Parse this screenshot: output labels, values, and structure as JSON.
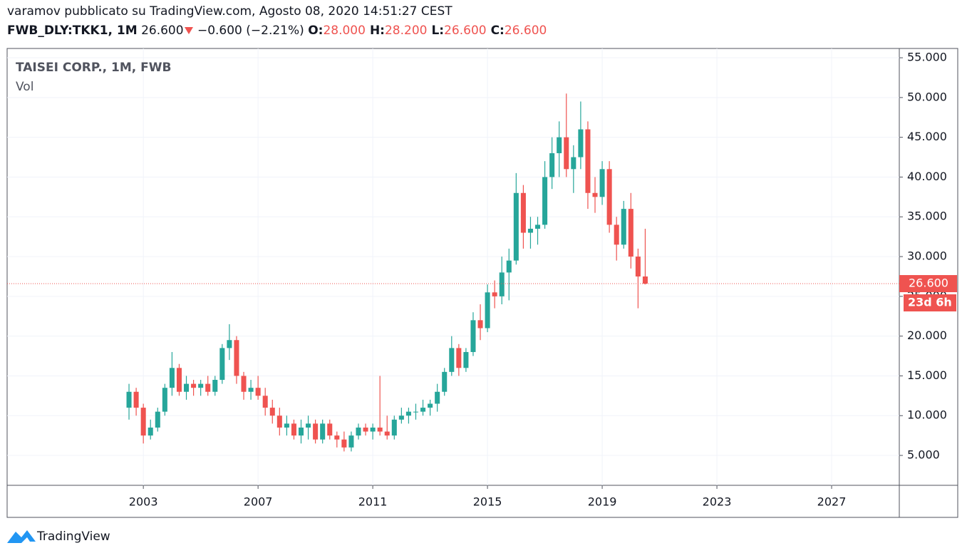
{
  "header": {
    "author_line": "varamov pubblicato su TradingView.com, Agosto 08, 2020 14:51:27 CEST",
    "symbol": "FWB_DLY:TKK1, 1M",
    "last": "26.600",
    "change": "−0.600 (−2.21%)",
    "ohlc": [
      {
        "key": "O:",
        "value": "28.000"
      },
      {
        "key": "H:",
        "value": "28.200"
      },
      {
        "key": "L:",
        "value": "26.600"
      },
      {
        "key": "C:",
        "value": "26.600"
      }
    ]
  },
  "chart_data": {
    "type": "candlestick",
    "title": "TAISEI CORP., 1M, FWB",
    "volume_label": "Vol",
    "up_color": "#26a69a",
    "down_color": "#ef5350",
    "grid": true,
    "price_line": {
      "value": 26.6,
      "label": "26.600"
    },
    "countdown": "23d 6h",
    "xlim": [
      1998.25,
      2029.36
    ],
    "xticks": [
      2003,
      2007,
      2011,
      2015,
      2019,
      2023,
      2027
    ],
    "ylim": [
      1.24,
      56.17
    ],
    "yticks": [
      {
        "value": 5,
        "label": "5.000"
      },
      {
        "value": 10,
        "label": "10.000"
      },
      {
        "value": 15,
        "label": "15.000"
      },
      {
        "value": 20,
        "label": "20.000"
      },
      {
        "value": 25,
        "label": "25.000"
      },
      {
        "value": 30,
        "label": "30.000"
      },
      {
        "value": 35,
        "label": "35.000"
      },
      {
        "value": 40,
        "label": "40.000"
      },
      {
        "value": 45,
        "label": "45.000"
      },
      {
        "value": 50,
        "label": "50.000"
      },
      {
        "value": 55,
        "label": "55.000"
      }
    ],
    "x": [
      2002.5,
      2002.75,
      2003,
      2003.25,
      2003.5,
      2003.75,
      2004,
      2004.25,
      2004.5,
      2004.75,
      2005,
      2005.25,
      2005.5,
      2005.75,
      2006,
      2006.25,
      2006.5,
      2006.75,
      2007,
      2007.25,
      2007.5,
      2007.75,
      2008,
      2008.25,
      2008.5,
      2008.75,
      2009,
      2009.25,
      2009.5,
      2009.75,
      2010,
      2010.25,
      2010.5,
      2010.75,
      2011,
      2011.25,
      2011.5,
      2011.75,
      2012,
      2012.25,
      2012.5,
      2012.75,
      2013,
      2013.25,
      2013.5,
      2013.75,
      2014,
      2014.25,
      2014.5,
      2014.75,
      2015,
      2015.25,
      2015.5,
      2015.75,
      2016,
      2016.25,
      2016.5,
      2016.75,
      2017,
      2017.25,
      2017.5,
      2017.75,
      2018,
      2018.25,
      2018.5,
      2018.75,
      2019,
      2019.25,
      2019.5,
      2019.75,
      2020,
      2020.25,
      2020.5
    ],
    "open": [
      11,
      13,
      11,
      7.5,
      8.5,
      10.5,
      13.5,
      16,
      13,
      14,
      13.5,
      14,
      13,
      14.5,
      18.5,
      19.5,
      15,
      13,
      13.5,
      12.5,
      11,
      10,
      8.5,
      9,
      7.5,
      8.5,
      9,
      7,
      9,
      7.5,
      7,
      6,
      7.5,
      8.5,
      8,
      8.5,
      8,
      7.5,
      9.5,
      10,
      10.5,
      10.5,
      11,
      11.5,
      13,
      15.5,
      18.5,
      16,
      18,
      22,
      21,
      25.5,
      25,
      28,
      29.5,
      38,
      33,
      33.5,
      34,
      40,
      43,
      45,
      41,
      42.5,
      46,
      38,
      37.5,
      41,
      34,
      31.5,
      36,
      30,
      27.5
    ],
    "high": [
      14,
      13.5,
      11.5,
      9.5,
      11,
      14,
      18,
      16.5,
      15,
      14.5,
      14.5,
      15,
      15,
      19,
      21.5,
      20,
      15.5,
      14.5,
      15,
      13.5,
      12,
      11,
      10,
      9.5,
      9.5,
      10,
      9.5,
      9.5,
      9.5,
      8,
      8,
      8,
      9,
      9,
      9,
      15,
      10,
      10,
      11,
      11,
      11.5,
      12,
      12,
      14,
      16,
      20,
      19,
      18.5,
      23,
      24,
      26.5,
      27,
      30,
      31,
      40.5,
      39,
      35,
      35,
      42,
      45,
      47,
      50.5,
      44,
      49.5,
      47,
      40,
      42,
      42,
      35,
      37,
      38,
      31,
      33.5
    ],
    "low": [
      9.5,
      10,
      6.5,
      7,
      8,
      10,
      12.5,
      12.5,
      12,
      12.5,
      12.5,
      12.5,
      12.5,
      14,
      17,
      14,
      12,
      12,
      12,
      10,
      9,
      7.5,
      7.5,
      7,
      6.5,
      7,
      6.5,
      6.5,
      7,
      6,
      5.5,
      5.5,
      7,
      7.5,
      7,
      7.5,
      7,
      7,
      9,
      9,
      9.5,
      10,
      10,
      10.5,
      12.5,
      15,
      15,
      15.5,
      17.5,
      19.5,
      20.5,
      23.5,
      24,
      24.5,
      29,
      31,
      31,
      31.5,
      33.5,
      38.5,
      40,
      40,
      38,
      41,
      36,
      35.5,
      36.5,
      33,
      29.5,
      31,
      28.5,
      23.5,
      26.5
    ],
    "close": [
      13,
      11,
      7.5,
      8.5,
      10.5,
      13.5,
      16,
      13,
      14,
      13.5,
      14,
      13,
      14.5,
      18.5,
      19.5,
      15,
      13,
      13.5,
      12.5,
      11,
      10,
      8.5,
      9,
      7.5,
      8.5,
      9,
      7,
      9,
      7.5,
      7,
      6,
      7.5,
      8.5,
      8,
      8.5,
      8,
      7.5,
      9.5,
      10,
      10.5,
      10.5,
      11,
      11.5,
      13,
      15.5,
      18.5,
      16,
      18,
      22,
      21,
      25.5,
      25,
      28,
      29.5,
      38,
      33,
      33.5,
      34,
      40,
      43,
      45,
      41,
      42.5,
      46,
      38,
      37.5,
      41,
      34,
      31.5,
      36,
      30,
      27.5,
      26.6
    ]
  }
}
